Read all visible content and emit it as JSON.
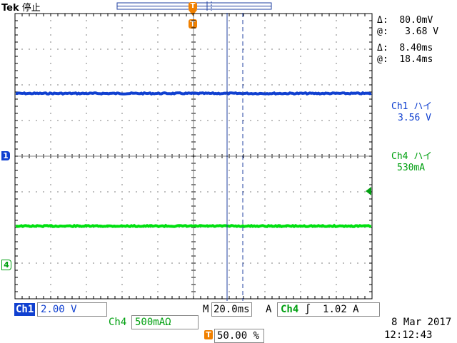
{
  "header": {
    "brand": "Tek",
    "run_state": "停止"
  },
  "trigger_marker_label": "T",
  "cursor_readout": {
    "amp_delta_symbol": "Δ:",
    "amp_delta": "80.0mV",
    "amp_at_symbol": "@:",
    "amp_at": "3.68 V",
    "time_delta_symbol": "Δ:",
    "time_delta": "8.40ms",
    "time_at_symbol": "@:",
    "time_at": "18.4ms"
  },
  "measurements": [
    {
      "label": "Ch1 ハイ",
      "value": "3.56 V",
      "color": "#1040d0"
    },
    {
      "label": "Ch4 ハイ",
      "value": "530mA",
      "color": "#00a010"
    }
  ],
  "channel_markers": {
    "ch1": "1",
    "ch4": "4"
  },
  "status_bar": {
    "ch1_label": "Ch1",
    "ch1_scale": "2.00 V",
    "timebase_prefix": "M",
    "timebase": "20.0ms",
    "trigger_mode": "A",
    "trigger_source": "Ch4",
    "trigger_slope_icon": "rising-edge-icon",
    "trigger_level": "1.02 A",
    "ch4_label": "Ch4",
    "ch4_scale": "500mAΩ",
    "trigger_pos_icon": "T",
    "trigger_position": "50.00 %",
    "date": "8 Mar 2017",
    "time": "12:12:43"
  },
  "colors": {
    "ch1": "#1040d0",
    "ch4": "#00e010",
    "trigger": "#f08000",
    "grid": "#000000"
  }
}
